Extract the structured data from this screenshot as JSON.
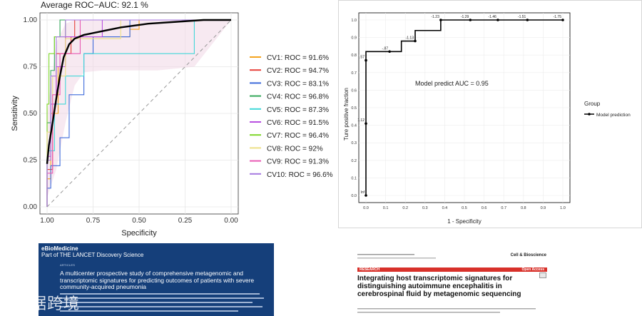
{
  "chart_data": [
    {
      "type": "line",
      "title": "Average ROC−AUC:  92.1 %",
      "xlabel": "Specificity",
      "ylabel": "Sensitivity",
      "xlim": [
        1.0,
        0.0
      ],
      "ylim": [
        0.0,
        1.0
      ],
      "x_ticks": [
        "1.00",
        "0.75",
        "0.50",
        "0.25",
        "0.00"
      ],
      "y_ticks": [
        "0.00",
        "0.25",
        "0.50",
        "0.75",
        "1.00"
      ],
      "grid": true,
      "legend_position": "right",
      "average_curve": {
        "name": "Average",
        "color": "#000000",
        "specificity": [
          1.0,
          0.99,
          0.97,
          0.95,
          0.93,
          0.91,
          0.88,
          0.85,
          0.8,
          0.75,
          0.6,
          0.45,
          0.3,
          0.15,
          0.0
        ],
        "sensitivity": [
          0.23,
          0.33,
          0.45,
          0.58,
          0.7,
          0.8,
          0.87,
          0.9,
          0.92,
          0.93,
          0.96,
          0.98,
          0.99,
          1.0,
          1.0
        ]
      },
      "average_band": {
        "specificity": [
          1.0,
          0.95,
          0.9,
          0.85,
          0.8,
          0.7,
          0.6,
          0.4,
          0.2,
          0.0
        ],
        "lower": [
          0.05,
          0.2,
          0.45,
          0.65,
          0.72,
          0.73,
          0.73,
          0.73,
          0.75,
          1.0
        ],
        "upper": [
          0.5,
          0.88,
          0.98,
          1.0,
          1.0,
          1.0,
          1.0,
          1.0,
          1.0,
          1.0
        ]
      },
      "series": [
        {
          "name": "CV1: ROC = 91.6%",
          "color": "#f4a41f",
          "specificity": [
            1.0,
            1.0,
            0.98,
            0.98,
            0.94,
            0.94,
            0.9,
            0.9,
            0.55,
            0.55,
            0.5,
            0.5,
            0.0
          ],
          "sensitivity": [
            0.0,
            0.15,
            0.15,
            0.5,
            0.5,
            0.75,
            0.75,
            0.91,
            0.91,
            0.95,
            0.95,
            1.0,
            1.0
          ]
        },
        {
          "name": "CV2: ROC = 94.7%",
          "color": "#e8403a",
          "specificity": [
            1.0,
            1.0,
            0.97,
            0.97,
            0.95,
            0.95,
            0.87,
            0.87,
            0.85,
            0.85,
            0.0
          ],
          "sensitivity": [
            0.0,
            0.2,
            0.2,
            0.55,
            0.55,
            0.82,
            0.82,
            0.91,
            0.91,
            1.0,
            1.0
          ]
        },
        {
          "name": "CV3: ROC = 83.1%",
          "color": "#3d6bdb",
          "specificity": [
            1.0,
            1.0,
            0.98,
            0.98,
            0.93,
            0.93,
            0.88,
            0.88,
            0.8,
            0.8,
            0.75,
            0.75,
            0.55,
            0.55,
            0.0
          ],
          "sensitivity": [
            0.0,
            0.1,
            0.1,
            0.22,
            0.22,
            0.37,
            0.37,
            0.6,
            0.6,
            0.82,
            0.82,
            0.91,
            0.91,
            1.0,
            1.0
          ]
        },
        {
          "name": "CV4: ROC = 96.8%",
          "color": "#34a85a",
          "specificity": [
            1.0,
            1.0,
            0.98,
            0.98,
            0.96,
            0.96,
            0.93,
            0.93,
            0.0
          ],
          "sensitivity": [
            0.0,
            0.45,
            0.45,
            0.73,
            0.73,
            0.91,
            0.91,
            1.0,
            1.0
          ]
        },
        {
          "name": "CV5: ROC = 87.3%",
          "color": "#40d8d8",
          "specificity": [
            1.0,
            1.0,
            0.96,
            0.96,
            0.9,
            0.9,
            0.8,
            0.8,
            0.2,
            0.2,
            0.0
          ],
          "sensitivity": [
            0.0,
            0.3,
            0.3,
            0.55,
            0.55,
            0.7,
            0.7,
            0.82,
            0.82,
            1.0,
            1.0
          ]
        },
        {
          "name": "CV6: ROC = 91.5%",
          "color": "#b850e0",
          "specificity": [
            1.0,
            1.0,
            0.98,
            0.98,
            0.95,
            0.95,
            0.9,
            0.9,
            0.7,
            0.7,
            0.0
          ],
          "sensitivity": [
            0.0,
            0.27,
            0.27,
            0.55,
            0.55,
            0.75,
            0.75,
            0.91,
            0.91,
            1.0,
            1.0
          ]
        },
        {
          "name": "CV7: ROC = 96.4%",
          "color": "#7fd62a",
          "specificity": [
            1.0,
            1.0,
            0.99,
            0.99,
            0.96,
            0.96,
            0.9,
            0.9,
            0.0
          ],
          "sensitivity": [
            0.0,
            0.55,
            0.55,
            0.82,
            0.82,
            0.91,
            0.91,
            1.0,
            1.0
          ]
        },
        {
          "name": "CV8: ROC = 92%",
          "color": "#ece086",
          "specificity": [
            1.0,
            1.0,
            0.97,
            0.97,
            0.9,
            0.9,
            0.6,
            0.6,
            0.0
          ],
          "sensitivity": [
            0.0,
            0.4,
            0.4,
            0.7,
            0.7,
            0.9,
            0.9,
            1.0,
            1.0
          ]
        },
        {
          "name": "CV9: ROC = 91.3%",
          "color": "#e85ab4",
          "specificity": [
            1.0,
            1.0,
            0.97,
            0.97,
            0.93,
            0.93,
            0.82,
            0.82,
            0.0
          ],
          "sensitivity": [
            0.0,
            0.18,
            0.18,
            0.6,
            0.6,
            0.82,
            0.82,
            1.0,
            1.0
          ]
        },
        {
          "name": "CV10: ROC = 96.6%",
          "color": "#a67ae0",
          "specificity": [
            1.0,
            1.0,
            0.98,
            0.98,
            0.95,
            0.95,
            0.9,
            0.9,
            0.0
          ],
          "sensitivity": [
            0.0,
            0.25,
            0.25,
            0.7,
            0.7,
            0.91,
            0.91,
            1.0,
            1.0
          ]
        }
      ]
    },
    {
      "type": "line",
      "title": "",
      "xlabel": "1 - Specificity",
      "ylabel": "Ture positive fraction",
      "xlim": [
        0.0,
        1.0
      ],
      "ylim": [
        0.0,
        1.0
      ],
      "x_ticks": [
        "0.0",
        "0.1",
        "0.2",
        "0.3",
        "0.4",
        "0.5",
        "0.6",
        "0.7",
        "0.8",
        "0.9",
        "1.0"
      ],
      "y_ticks": [
        "0.0",
        "0.1",
        "0.2",
        "0.3",
        "0.4",
        "0.5",
        "0.6",
        "0.7",
        "0.8",
        "0.9",
        "1.0"
      ],
      "grid": true,
      "annotation": "Model predict AUC = 0.95",
      "legend_title": "Group",
      "legend_position": "right",
      "series": [
        {
          "name": "Model prediction",
          "color": "#000000",
          "fpr": [
            0.0,
            0.0,
            0.0,
            0.0,
            0.18,
            0.18,
            0.25,
            0.25,
            0.38,
            0.38,
            1.0
          ],
          "tpr": [
            0.0,
            0.43,
            0.6,
            0.82,
            0.82,
            0.88,
            0.88,
            0.94,
            0.94,
            1.0,
            1.0
          ]
        },
        {
          "name": "cutoff-points",
          "color": "#000000",
          "points": [
            {
              "fpr": 0.0,
              "tpr": 0.0,
              "label": "Inf"
            },
            {
              "fpr": 0.0,
              "tpr": 0.41,
              "label": "1.12"
            },
            {
              "fpr": 0.0,
              "tpr": 0.77,
              "label": ".57"
            },
            {
              "fpr": 0.12,
              "tpr": 0.82,
              "label": "-.87"
            },
            {
              "fpr": 0.25,
              "tpr": 0.88,
              "label": "-1.13"
            },
            {
              "fpr": 0.38,
              "tpr": 1.0,
              "label": "-1.23"
            },
            {
              "fpr": 0.53,
              "tpr": 1.0,
              "label": "-1.29"
            },
            {
              "fpr": 0.67,
              "tpr": 1.0,
              "label": "-1.46"
            },
            {
              "fpr": 0.82,
              "tpr": 1.0,
              "label": "-1.51"
            },
            {
              "fpr": 1.0,
              "tpr": 1.0,
              "label": "-1.75"
            }
          ]
        }
      ]
    }
  ],
  "ebio": {
    "brand_line1": "eBioMedicine",
    "brand_line2": "Part of THE LANCET Discovery Science",
    "kicker": "ARTICLES",
    "title": "A multicenter prospective study of comprehensive metagenomic and transcriptomic signatures for predicting outcomes of patients with severe community-acquired pneumonia"
  },
  "cb": {
    "journal_name": "Cell & Bioscience",
    "research_label": "RESEARCH",
    "open_access_label": "Open Access",
    "title": "Integrating host transcriptomic signatures for distinguishing autoimmune encephalitis in cerebrospinal fluid by metagenomic sequencing"
  },
  "watermark": "数据跨境"
}
